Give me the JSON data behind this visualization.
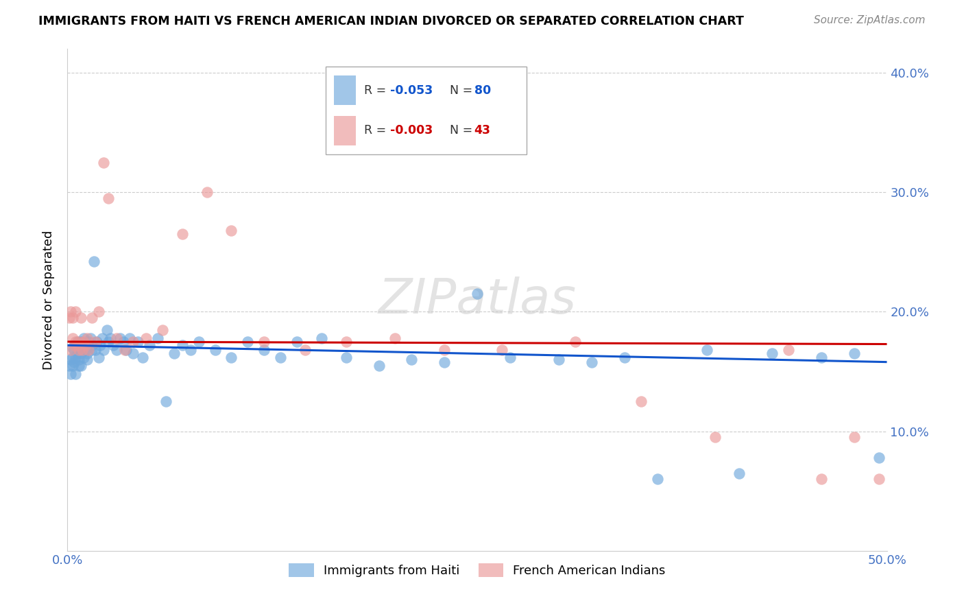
{
  "title": "IMMIGRANTS FROM HAITI VS FRENCH AMERICAN INDIAN DIVORCED OR SEPARATED CORRELATION CHART",
  "source": "Source: ZipAtlas.com",
  "tick_color": "#4472c4",
  "ylabel": "Divorced or Separated",
  "xlim": [
    0,
    0.5
  ],
  "ylim": [
    0,
    0.42
  ],
  "blue_R": -0.053,
  "blue_N": 80,
  "pink_R": -0.003,
  "pink_N": 43,
  "blue_color": "#6fa8dc",
  "pink_color": "#ea9999",
  "blue_line_color": "#1155cc",
  "pink_line_color": "#cc0000",
  "blue_x": [
    0.001,
    0.002,
    0.002,
    0.003,
    0.003,
    0.003,
    0.004,
    0.004,
    0.005,
    0.005,
    0.005,
    0.006,
    0.006,
    0.007,
    0.007,
    0.007,
    0.008,
    0.008,
    0.008,
    0.009,
    0.009,
    0.01,
    0.01,
    0.011,
    0.011,
    0.012,
    0.012,
    0.013,
    0.014,
    0.015,
    0.015,
    0.016,
    0.017,
    0.018,
    0.019,
    0.02,
    0.021,
    0.022,
    0.024,
    0.025,
    0.026,
    0.028,
    0.03,
    0.032,
    0.034,
    0.036,
    0.038,
    0.04,
    0.043,
    0.046,
    0.05,
    0.055,
    0.06,
    0.065,
    0.07,
    0.075,
    0.08,
    0.09,
    0.1,
    0.11,
    0.12,
    0.13,
    0.14,
    0.155,
    0.17,
    0.19,
    0.21,
    0.23,
    0.25,
    0.27,
    0.3,
    0.32,
    0.34,
    0.36,
    0.39,
    0.41,
    0.43,
    0.46,
    0.48,
    0.495
  ],
  "blue_y": [
    0.155,
    0.16,
    0.148,
    0.162,
    0.155,
    0.17,
    0.158,
    0.168,
    0.162,
    0.172,
    0.148,
    0.165,
    0.175,
    0.16,
    0.17,
    0.155,
    0.165,
    0.175,
    0.155,
    0.168,
    0.172,
    0.162,
    0.178,
    0.168,
    0.172,
    0.165,
    0.16,
    0.175,
    0.178,
    0.168,
    0.172,
    0.242,
    0.168,
    0.175,
    0.162,
    0.172,
    0.178,
    0.168,
    0.185,
    0.175,
    0.178,
    0.172,
    0.168,
    0.178,
    0.175,
    0.168,
    0.178,
    0.165,
    0.175,
    0.162,
    0.172,
    0.178,
    0.125,
    0.165,
    0.172,
    0.168,
    0.175,
    0.168,
    0.162,
    0.175,
    0.168,
    0.162,
    0.175,
    0.178,
    0.162,
    0.155,
    0.16,
    0.158,
    0.215,
    0.162,
    0.16,
    0.158,
    0.162,
    0.06,
    0.168,
    0.065,
    0.165,
    0.162,
    0.165,
    0.078
  ],
  "pink_x": [
    0.001,
    0.002,
    0.002,
    0.003,
    0.003,
    0.004,
    0.005,
    0.005,
    0.006,
    0.007,
    0.007,
    0.008,
    0.009,
    0.01,
    0.011,
    0.012,
    0.013,
    0.015,
    0.017,
    0.019,
    0.022,
    0.025,
    0.03,
    0.035,
    0.04,
    0.048,
    0.058,
    0.07,
    0.085,
    0.1,
    0.12,
    0.145,
    0.17,
    0.2,
    0.23,
    0.265,
    0.31,
    0.35,
    0.395,
    0.44,
    0.46,
    0.48,
    0.495
  ],
  "pink_y": [
    0.195,
    0.168,
    0.2,
    0.178,
    0.195,
    0.172,
    0.175,
    0.2,
    0.172,
    0.168,
    0.175,
    0.195,
    0.168,
    0.175,
    0.172,
    0.178,
    0.168,
    0.195,
    0.175,
    0.2,
    0.325,
    0.295,
    0.178,
    0.168,
    0.175,
    0.178,
    0.185,
    0.265,
    0.3,
    0.268,
    0.175,
    0.168,
    0.175,
    0.178,
    0.168,
    0.168,
    0.175,
    0.125,
    0.095,
    0.168,
    0.06,
    0.095,
    0.06
  ],
  "blue_trend_x": [
    0.0,
    0.5
  ],
  "blue_trend_y": [
    0.172,
    0.158
  ],
  "pink_trend_x": [
    0.0,
    0.5
  ],
  "pink_trend_y": [
    0.175,
    0.173
  ]
}
